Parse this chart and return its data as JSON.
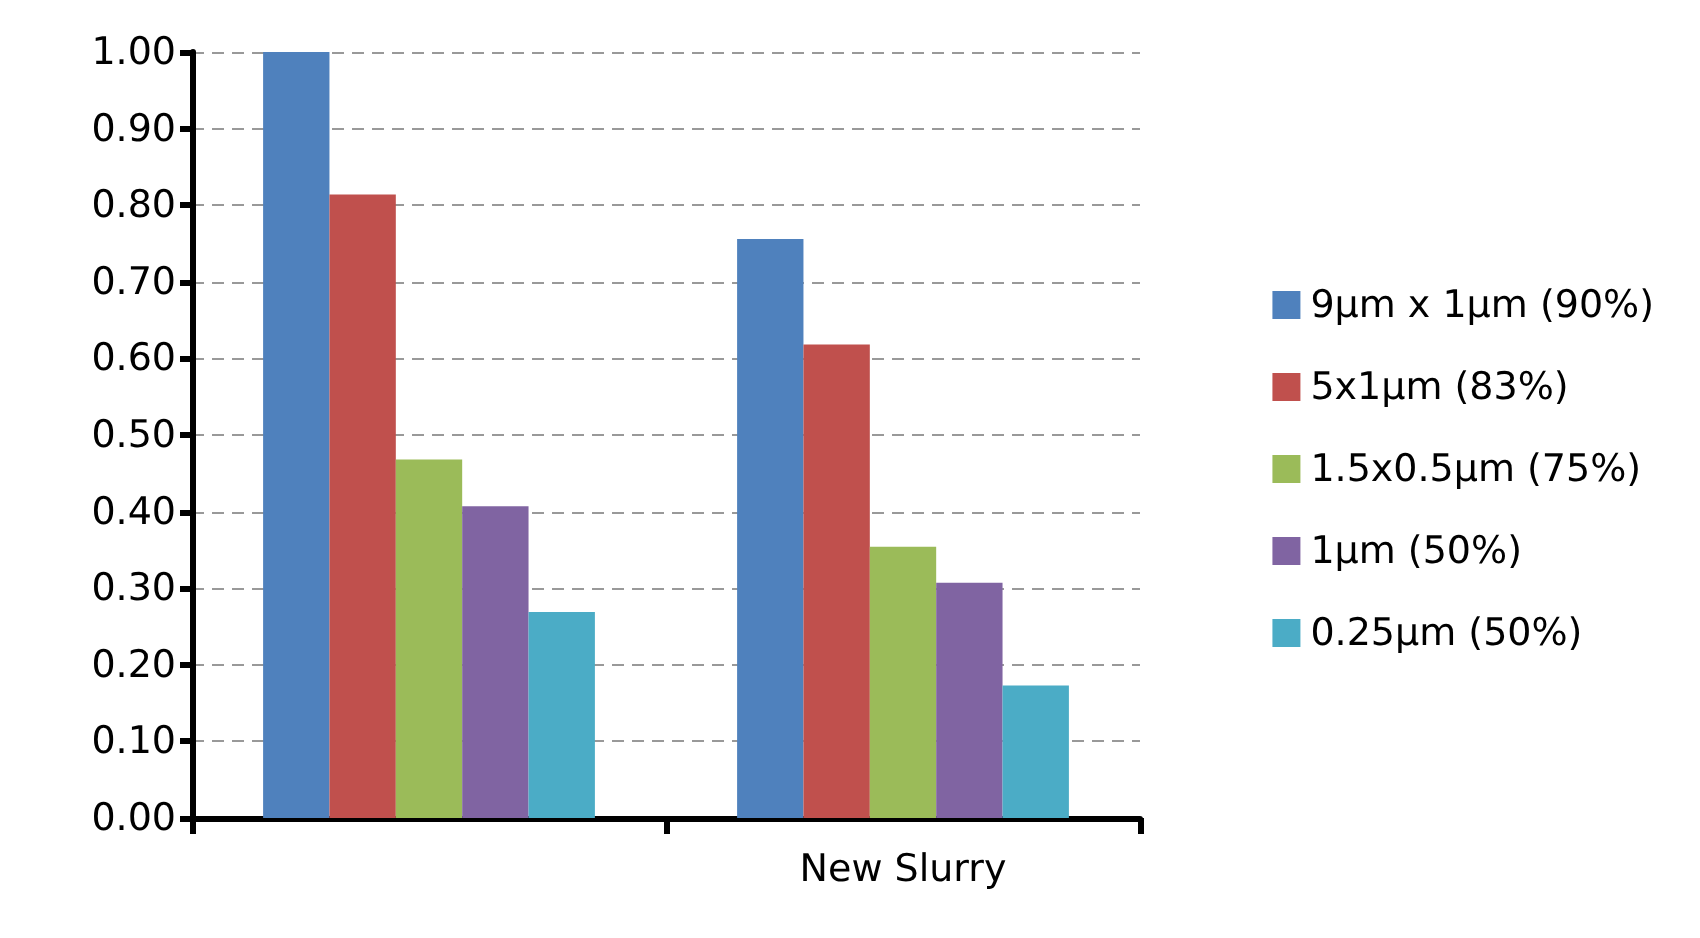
{
  "chart_data": {
    "type": "bar",
    "categories": [
      null,
      "New Slurry"
    ],
    "series": [
      {
        "name": "9µm x 1µm (90%)",
        "color": "#4f81bd",
        "values": [
          1.0,
          0.756
        ]
      },
      {
        "name": "5x1µm (83%)",
        "color": "#c0504d",
        "values": [
          0.814,
          0.618
        ]
      },
      {
        "name": "1.5x0.5µm (75%)",
        "color": "#9bbb59",
        "values": [
          0.468,
          0.354
        ]
      },
      {
        "name": "1µm (50%)",
        "color": "#8064a2",
        "values": [
          0.407,
          0.307
        ]
      },
      {
        "name": "0.25µm (50%)",
        "color": "#4bacc6",
        "values": [
          0.269,
          0.173
        ]
      }
    ],
    "ylim": [
      0,
      1
    ],
    "yticks": [
      {
        "value": 0,
        "label": "0.00"
      },
      {
        "value": 0.1,
        "label": "0.10"
      },
      {
        "value": 0.2,
        "label": "0.20"
      },
      {
        "value": 0.3,
        "label": "0.30"
      },
      {
        "value": 0.4,
        "label": "0.40"
      },
      {
        "value": 0.5,
        "label": "0.50"
      },
      {
        "value": 0.6,
        "label": "0.60"
      },
      {
        "value": 0.7,
        "label": "0.70"
      },
      {
        "value": 0.8,
        "label": "0.80"
      },
      {
        "value": 0.9,
        "label": "0.90"
      },
      {
        "value": 1,
        "label": "1.00"
      }
    ],
    "grid": "y",
    "legend": "right"
  }
}
